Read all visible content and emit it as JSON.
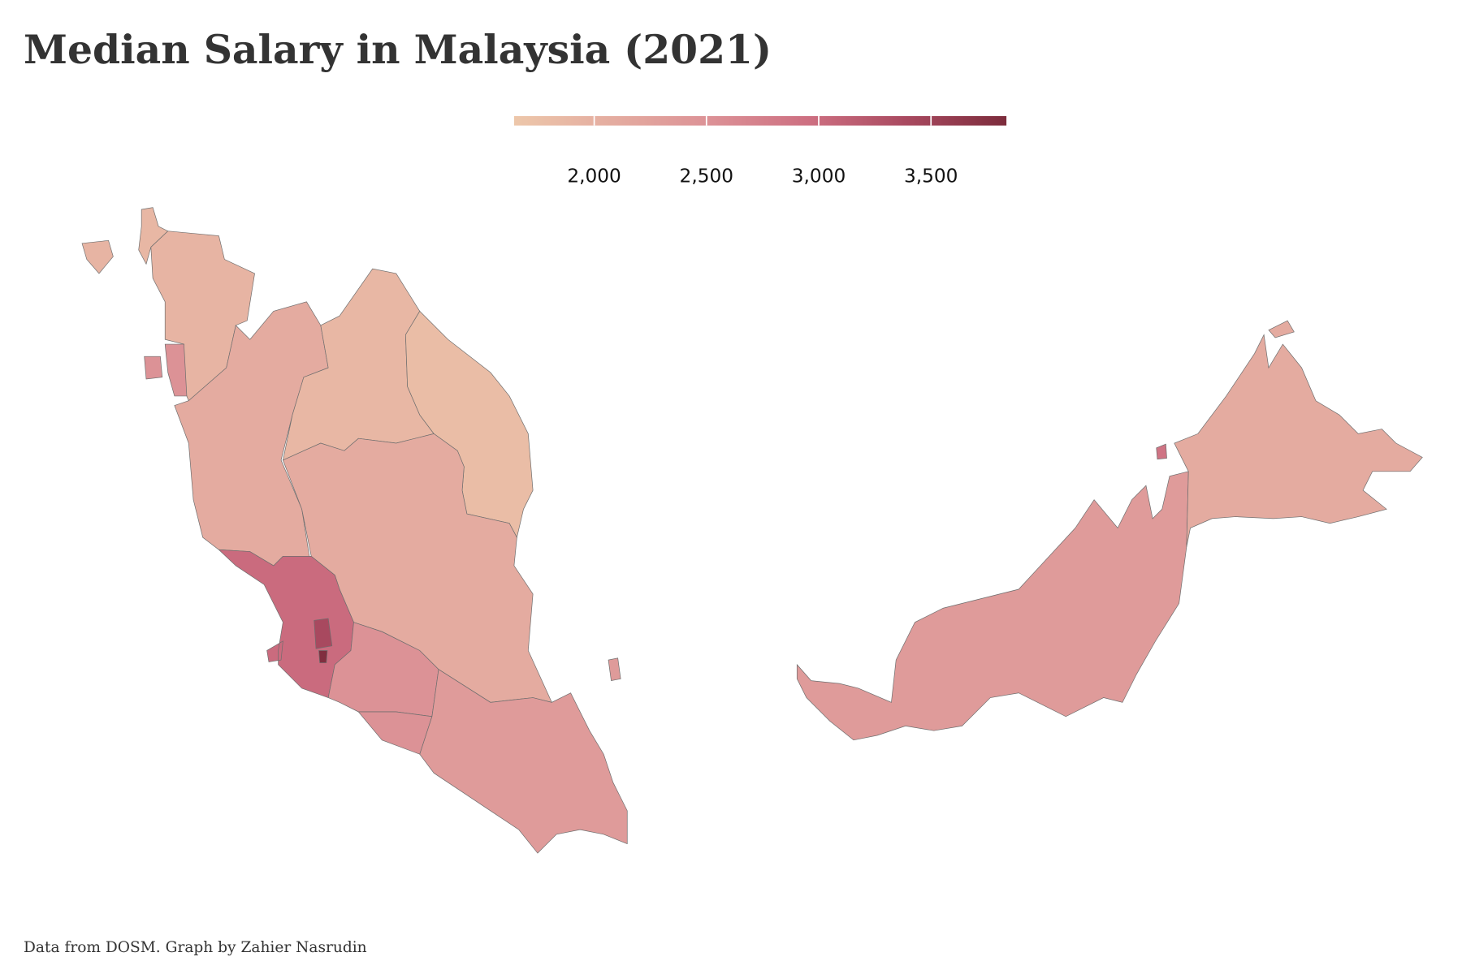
{
  "chart_data": {
    "type": "choropleth",
    "title": "Median Salary in Malaysia (2021)",
    "caption": "Data from DOSM. Graph by Zahier Nasrudin",
    "values": [
      1900,
      1950,
      2500,
      2100,
      1900,
      1800,
      2100,
      3000,
      3400,
      3800,
      2500,
      2500,
      2350,
      2350,
      2100,
      2900
    ],
    "clim": [
      1643,
      3836
    ],
    "colors": [
      "#edc7aa",
      "#e4aca0",
      "#dc9196",
      "#cd6f81",
      "#a8495f",
      "#7c2c3c"
    ],
    "ticks": [
      {
        "value": 2000,
        "label": "2,000"
      },
      {
        "value": 2500,
        "label": "2,500"
      },
      {
        "value": 3000,
        "label": "3,000"
      },
      {
        "value": 3500,
        "label": "3,500"
      }
    ]
  }
}
